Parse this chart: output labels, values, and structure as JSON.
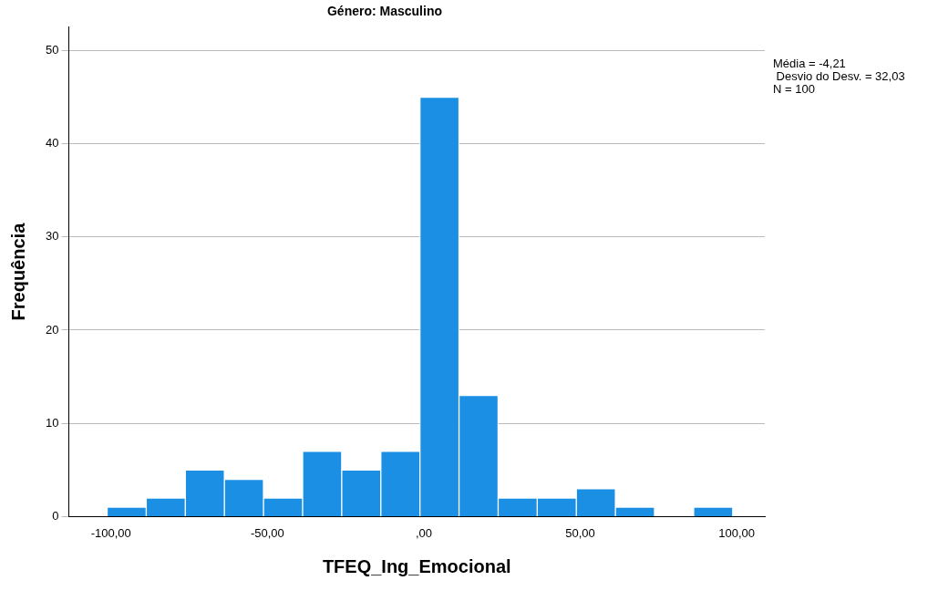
{
  "chart_data": {
    "type": "histogram",
    "title": "Género: Masculino",
    "xlabel": "TFEQ_Ing_Emocional",
    "ylabel": "Frequência",
    "bins": [
      -101.25,
      -88.75,
      -76.25,
      -63.75,
      -51.25,
      -38.75,
      -26.25,
      -13.75,
      -1.25,
      11.25,
      23.75,
      36.25,
      48.75,
      61.25,
      73.75,
      86.25,
      98.75
    ],
    "values": [
      1,
      2,
      5,
      4,
      2,
      7,
      5,
      7,
      45,
      13,
      2,
      2,
      3,
      1,
      0,
      1
    ],
    "color": "#1a8fe3",
    "xlim": [
      -113.5,
      109
    ],
    "xticks": [
      {
        "value": -100,
        "label": "-100,00"
      },
      {
        "value": -50,
        "label": "-50,00"
      },
      {
        "value": 0,
        "label": ",00"
      },
      {
        "value": 50,
        "label": "50,00"
      },
      {
        "value": 100,
        "label": "100,00"
      }
    ],
    "ylim": [
      0,
      52.5
    ],
    "yticks": [
      0,
      10,
      20,
      30,
      40,
      50
    ],
    "grid": "y",
    "annotations": [
      "Média = -4,21",
      " Desvio do Desv. = 32,03",
      "N = 100"
    ]
  }
}
